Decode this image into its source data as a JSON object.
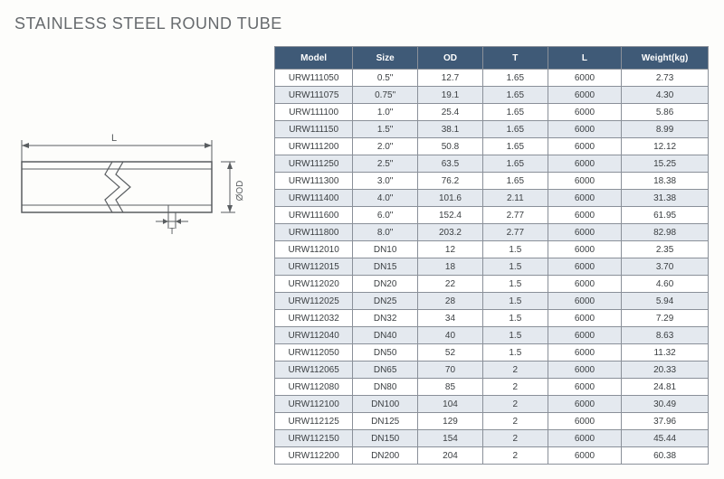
{
  "title": "STAINLESS STEEL ROUND TUBE",
  "diagram": {
    "labels": {
      "L": "L",
      "OD": "ØOD",
      "T": "T"
    },
    "stroke": "#595d60",
    "fill_light": "#fafafa"
  },
  "table": {
    "header_bg": "#3f5a77",
    "header_fg": "#ffffff",
    "row_alt_bg": "#e4e9ef",
    "border_color": "#8a9099",
    "columns": [
      "Model",
      "Size",
      "OD",
      "T",
      "L",
      "Weight(kg)"
    ],
    "rows": [
      [
        "URW111050",
        "0.5\"",
        "12.7",
        "1.65",
        "6000",
        "2.73"
      ],
      [
        "URW111075",
        "0.75\"",
        "19.1",
        "1.65",
        "6000",
        "4.30"
      ],
      [
        "URW111100",
        "1.0\"",
        "25.4",
        "1.65",
        "6000",
        "5.86"
      ],
      [
        "URW111150",
        "1.5\"",
        "38.1",
        "1.65",
        "6000",
        "8.99"
      ],
      [
        "URW111200",
        "2.0\"",
        "50.8",
        "1.65",
        "6000",
        "12.12"
      ],
      [
        "URW111250",
        "2.5\"",
        "63.5",
        "1.65",
        "6000",
        "15.25"
      ],
      [
        "URW111300",
        "3.0\"",
        "76.2",
        "1.65",
        "6000",
        "18.38"
      ],
      [
        "URW111400",
        "4.0\"",
        "101.6",
        "2.11",
        "6000",
        "31.38"
      ],
      [
        "URW111600",
        "6.0\"",
        "152.4",
        "2.77",
        "6000",
        "61.95"
      ],
      [
        "URW111800",
        "8.0\"",
        "203.2",
        "2.77",
        "6000",
        "82.98"
      ],
      [
        "URW112010",
        "DN10",
        "12",
        "1.5",
        "6000",
        "2.35"
      ],
      [
        "URW112015",
        "DN15",
        "18",
        "1.5",
        "6000",
        "3.70"
      ],
      [
        "URW112020",
        "DN20",
        "22",
        "1.5",
        "6000",
        "4.60"
      ],
      [
        "URW112025",
        "DN25",
        "28",
        "1.5",
        "6000",
        "5.94"
      ],
      [
        "URW112032",
        "DN32",
        "34",
        "1.5",
        "6000",
        "7.29"
      ],
      [
        "URW112040",
        "DN40",
        "40",
        "1.5",
        "6000",
        "8.63"
      ],
      [
        "URW112050",
        "DN50",
        "52",
        "1.5",
        "6000",
        "11.32"
      ],
      [
        "URW112065",
        "DN65",
        "70",
        "2",
        "6000",
        "20.33"
      ],
      [
        "URW112080",
        "DN80",
        "85",
        "2",
        "6000",
        "24.81"
      ],
      [
        "URW112100",
        "DN100",
        "104",
        "2",
        "6000",
        "30.49"
      ],
      [
        "URW112125",
        "DN125",
        "129",
        "2",
        "6000",
        "37.96"
      ],
      [
        "URW112150",
        "DN150",
        "154",
        "2",
        "6000",
        "45.44"
      ],
      [
        "URW112200",
        "DN200",
        "204",
        "2",
        "6000",
        "60.38"
      ]
    ]
  }
}
